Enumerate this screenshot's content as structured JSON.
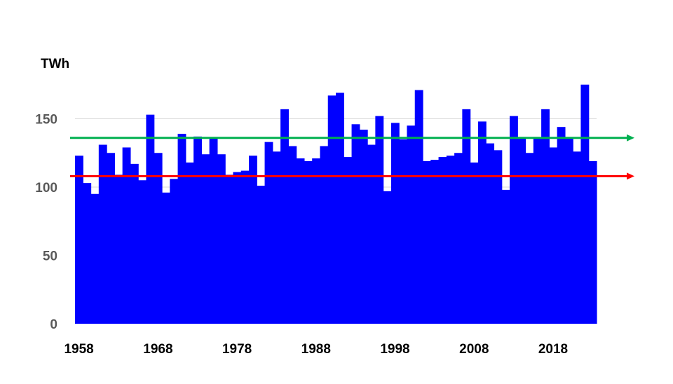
{
  "chart_data": {
    "type": "bar",
    "title": "",
    "xlabel": "",
    "ylabel": "TWh",
    "ylim": [
      0,
      180
    ],
    "yticks": [
      "0",
      "50",
      "100",
      "150"
    ],
    "xticks": [
      "1958",
      "1968",
      "1978",
      "1988",
      "1998",
      "2008",
      "2018"
    ],
    "grid": true,
    "bar_color": "#0000ff",
    "categories": [
      1958,
      1959,
      1960,
      1961,
      1962,
      1963,
      1964,
      1965,
      1966,
      1967,
      1968,
      1969,
      1970,
      1971,
      1972,
      1973,
      1974,
      1975,
      1976,
      1977,
      1978,
      1979,
      1980,
      1981,
      1982,
      1983,
      1984,
      1985,
      1986,
      1987,
      1988,
      1989,
      1990,
      1991,
      1992,
      1993,
      1994,
      1995,
      1996,
      1997,
      1998,
      1999,
      2000,
      2001,
      2002,
      2003,
      2004,
      2005,
      2006,
      2007,
      2008,
      2009,
      2010,
      2011,
      2012,
      2013,
      2014,
      2015,
      2016,
      2017,
      2018,
      2019,
      2020,
      2021
    ],
    "values": [
      123,
      103,
      95,
      131,
      125,
      109,
      129,
      117,
      105,
      153,
      125,
      96,
      106,
      139,
      118,
      137,
      124,
      136,
      124,
      109,
      111,
      112,
      123,
      101,
      133,
      126,
      157,
      130,
      121,
      119,
      121,
      130,
      167,
      169,
      122,
      146,
      142,
      131,
      152,
      97,
      147,
      135,
      145,
      171,
      119,
      120,
      122,
      123,
      125,
      157,
      118,
      148,
      132,
      127,
      98,
      152,
      136,
      125,
      136,
      157,
      129,
      144,
      136,
      126
    ],
    "extra_values": [
      175,
      119
    ],
    "reference_lines": [
      {
        "value": 136,
        "color": "#00b050"
      },
      {
        "value": 108,
        "color": "#ff0000"
      }
    ]
  }
}
